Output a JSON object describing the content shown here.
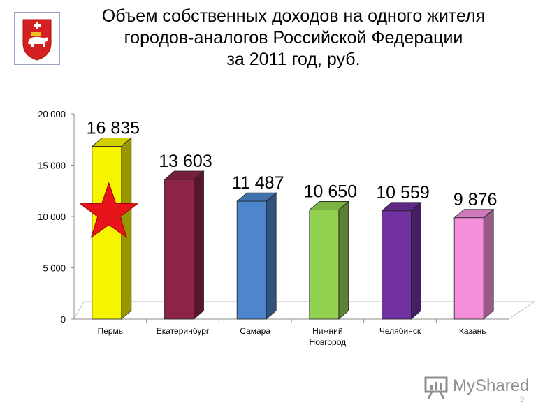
{
  "title_lines": [
    "Объем собственных доходов на одного жителя",
    "городов-аналогов Российской Федерации",
    "за 2011 год, руб."
  ],
  "coat_of_arms_icon": "bear-coat-of-arms-icon",
  "highlight_icon": "red-star-icon",
  "watermark": {
    "text": "MyShared",
    "icon": "presentation-board-icon"
  },
  "slide_number": "9",
  "chart_data": {
    "type": "bar",
    "categories": [
      "Пермь",
      "Екатеринбург",
      "Самара",
      "Нижний Новгород",
      "Челябинск",
      "Казань"
    ],
    "category_lines": [
      [
        "Пермь"
      ],
      [
        "Екатеринбург"
      ],
      [
        "Самара"
      ],
      [
        "Нижний",
        "Новгород"
      ],
      [
        "Челябинск"
      ],
      [
        "Казань"
      ]
    ],
    "values": [
      16835,
      13603,
      11487,
      10650,
      10559,
      9876
    ],
    "data_labels": [
      "16 835",
      "13 603",
      "11 487",
      "10 650",
      "10 559",
      "9 876"
    ],
    "colors": [
      "#f7f400",
      "#8e2445",
      "#4d86cc",
      "#92d050",
      "#7030a0",
      "#f58fdc"
    ],
    "ylim": [
      0,
      20000
    ],
    "yticks": [
      0,
      5000,
      10000,
      15000,
      20000
    ],
    "ytick_labels": [
      "0",
      "5 000",
      "10 000",
      "15 000",
      "20 000"
    ],
    "style": "3d-column",
    "grid": false,
    "legend": "none",
    "xlabel": "",
    "ylabel": ""
  }
}
